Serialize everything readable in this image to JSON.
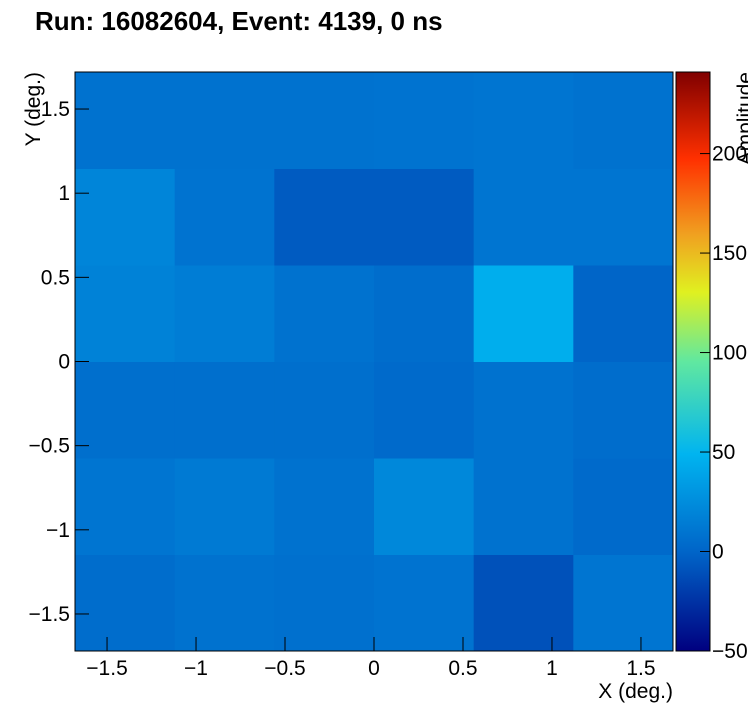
{
  "chart_data": {
    "type": "heatmap",
    "title": "Run: 16082604, Event: 4139, 0 ns",
    "x_label": "X (deg.)",
    "y_label": "Y (deg.)",
    "z_label": "Amplitude",
    "xlim": [
      -1.68,
      1.68
    ],
    "ylim": [
      -1.72,
      1.72
    ],
    "zlim": [
      -50,
      241
    ],
    "xticks": [
      {
        "value": -1.5,
        "label": "−1.5"
      },
      {
        "value": -1,
        "label": "−1"
      },
      {
        "value": -0.5,
        "label": "−0.5"
      },
      0,
      0.5,
      1,
      1.5
    ],
    "yticks": [
      {
        "value": -1.5,
        "label": "−1.5"
      },
      {
        "value": -1,
        "label": "−1"
      },
      {
        "value": -0.5,
        "label": "−0.5"
      },
      0,
      0.5,
      1,
      1.5
    ],
    "zticks": [
      {
        "value": -50,
        "label": "−50"
      },
      0,
      50,
      100,
      150,
      200
    ],
    "z": [
      [
        5,
        8,
        7,
        9,
        -10,
        10
      ],
      [
        10,
        13,
        8,
        22,
        8,
        3
      ],
      [
        6,
        6,
        6,
        3,
        8,
        5
      ],
      [
        18,
        15,
        8,
        5,
        45,
        0
      ],
      [
        20,
        9,
        -5,
        -5,
        10,
        10
      ],
      [
        8,
        8,
        8,
        9,
        10,
        8
      ]
    ]
  }
}
